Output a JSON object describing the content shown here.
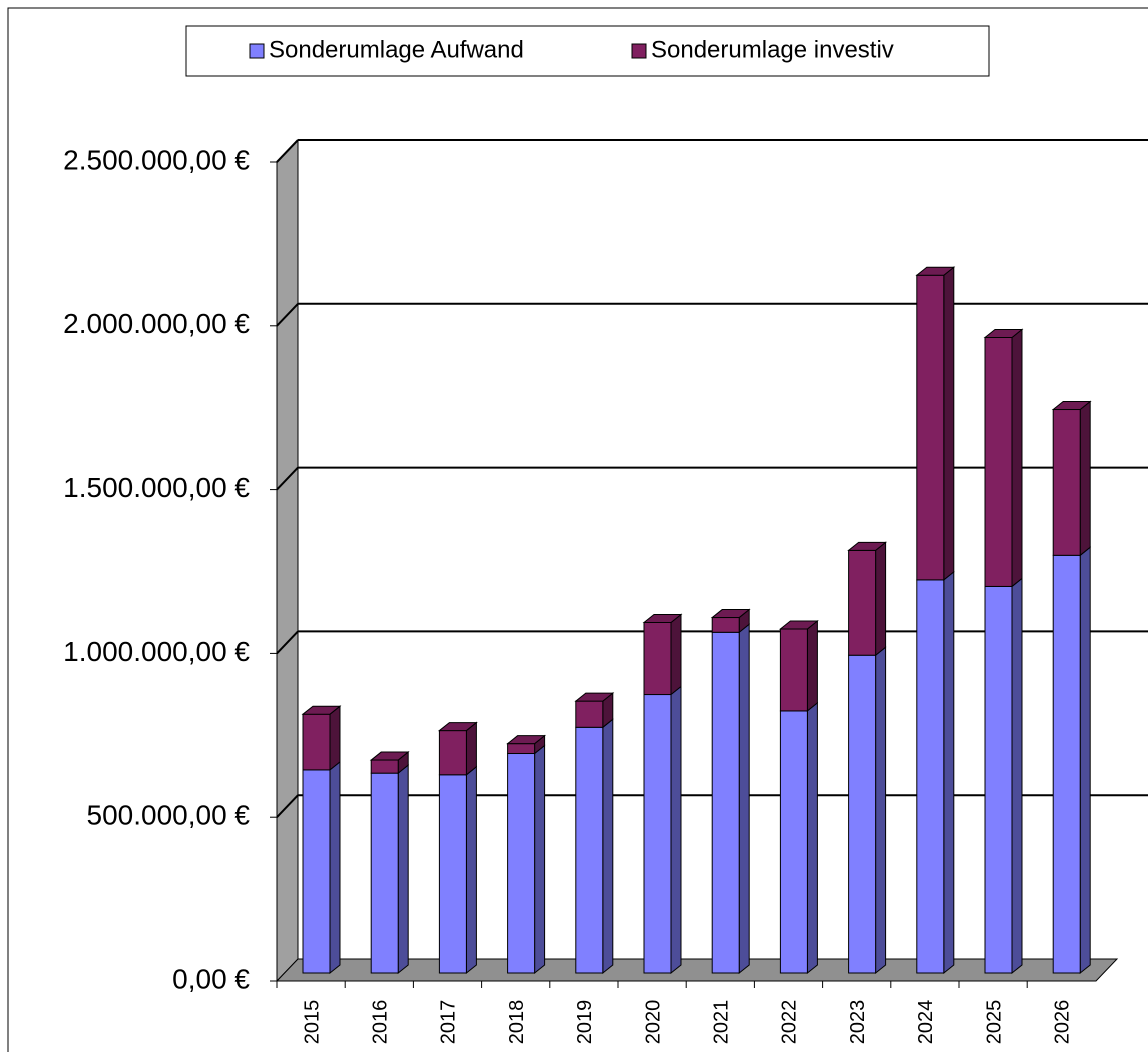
{
  "chart_data": {
    "type": "bar3d_stacked",
    "categories": [
      "2015",
      "2016",
      "2017",
      "2018",
      "2019",
      "2020",
      "2021",
      "2022",
      "2023",
      "2024",
      "2025",
      "2026"
    ],
    "series": [
      {
        "name": "Sonderumlage Aufwand",
        "color": "#8080ff",
        "values": [
          620000,
          610000,
          605000,
          670000,
          750000,
          850000,
          1040000,
          800000,
          970000,
          1200000,
          1180000,
          1275000
        ]
      },
      {
        "name": "Sonderumlage investiv",
        "color": "#802060",
        "values": [
          170000,
          40000,
          135000,
          30000,
          80000,
          220000,
          45000,
          250000,
          320000,
          930000,
          760000,
          445000
        ]
      }
    ],
    "ylim": [
      0,
      2500000
    ],
    "yticks": [
      {
        "value": 0,
        "label": "0,00 €"
      },
      {
        "value": 500000,
        "label": "500.000,00 €"
      },
      {
        "value": 1000000,
        "label": "1.000.000,00 €"
      },
      {
        "value": 1500000,
        "label": "1.500.000,00 €"
      },
      {
        "value": 2000000,
        "label": "2.000.000,00 €"
      },
      {
        "value": 2500000,
        "label": "2.500.000,00 €"
      }
    ],
    "grid": true,
    "legend": "top"
  }
}
